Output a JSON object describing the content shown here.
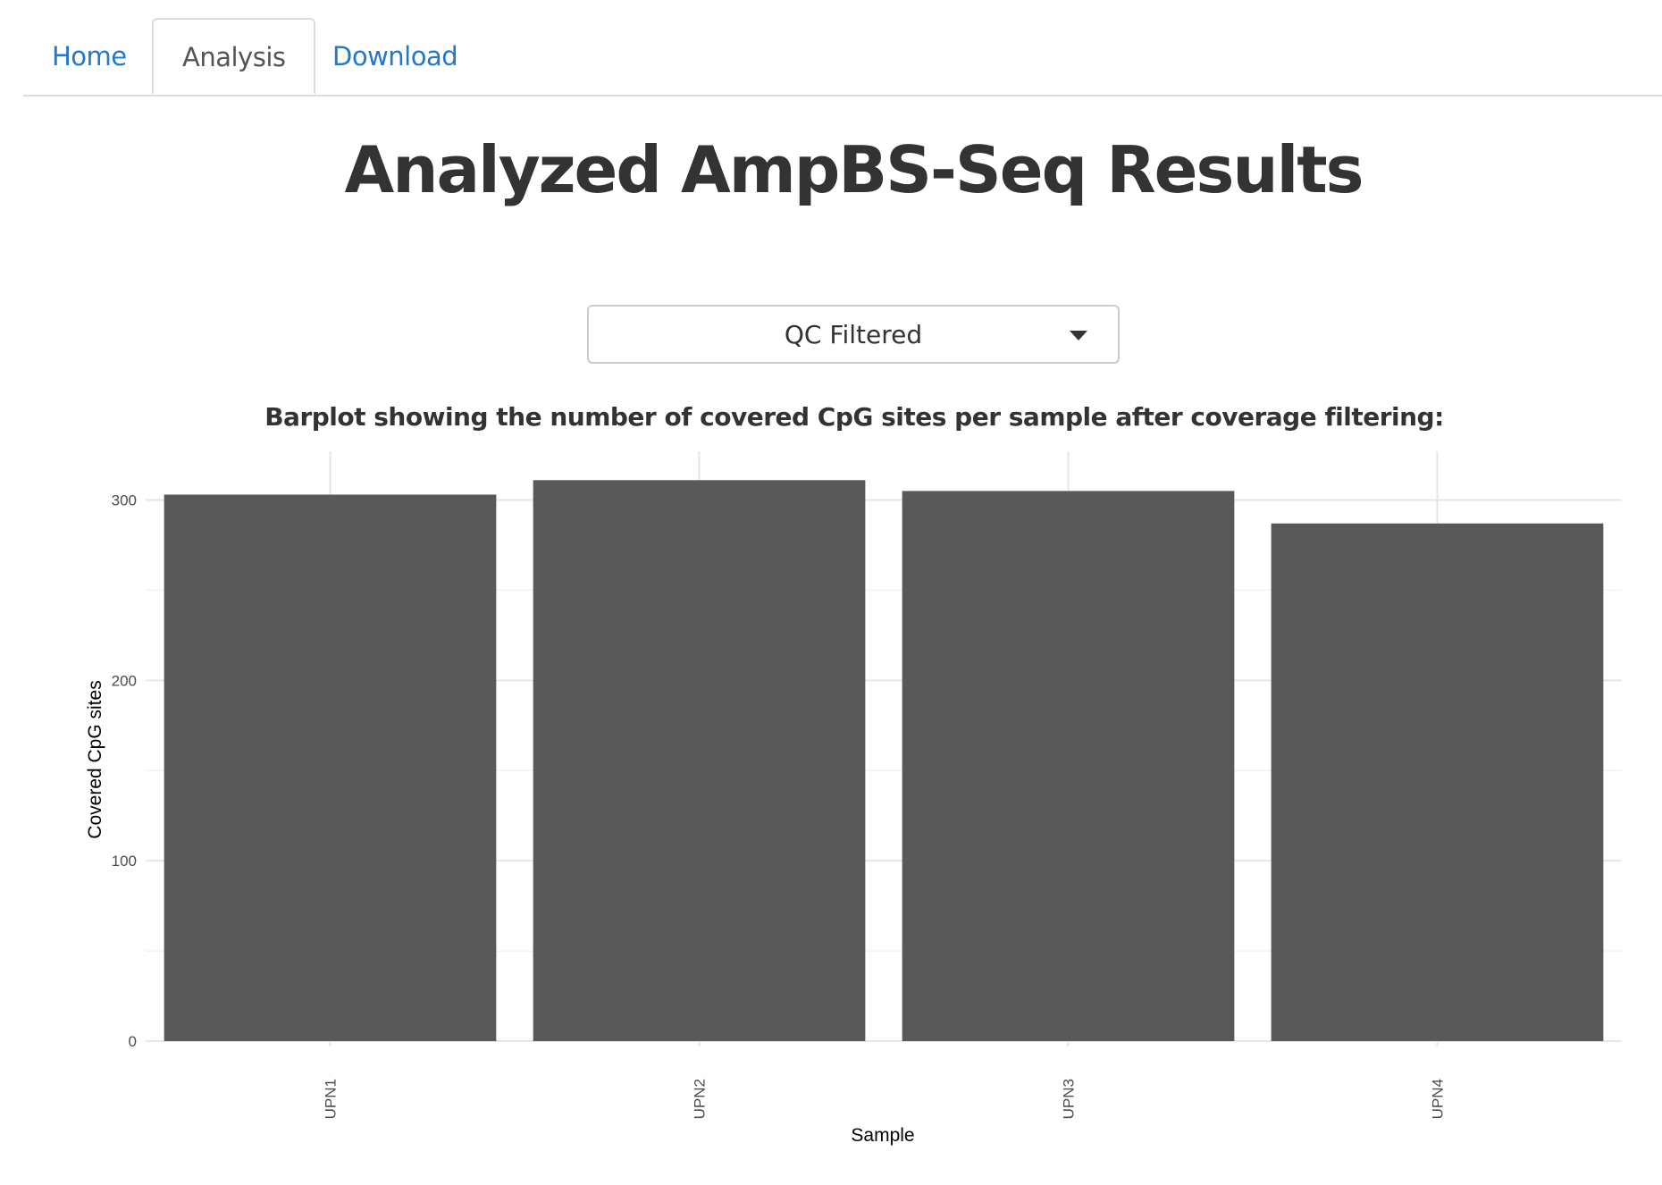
{
  "tabs": [
    {
      "label": "Home",
      "active": false
    },
    {
      "label": "Analysis",
      "active": true
    },
    {
      "label": "Download",
      "active": false
    }
  ],
  "page_title": "Analyzed AmpBS-Seq Results",
  "filter_select": {
    "selected": "QC Filtered"
  },
  "plot_caption": "Barplot showing the number of covered CpG sites per sample after coverage filtering:",
  "colors": {
    "accent_link": "#2178cd",
    "bar_fill": "#595959"
  },
  "chart_data": {
    "type": "bar",
    "categories": [
      "UPN1",
      "UPN2",
      "UPN3",
      "UPN4"
    ],
    "values": [
      303,
      311,
      305,
      287
    ],
    "xlabel": "Sample",
    "ylabel": "Covered CpG sites",
    "yticks": [
      0,
      100,
      200,
      300
    ],
    "ylim": [
      0,
      327
    ],
    "grid": true
  }
}
